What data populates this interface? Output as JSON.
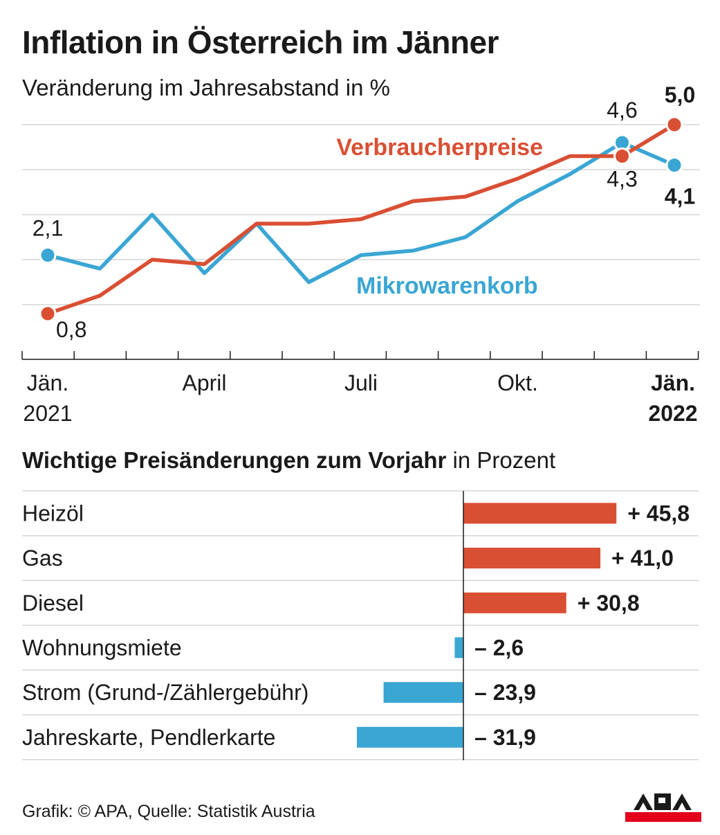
{
  "title": "Inflation in Österreich im Jänner",
  "subtitle": "Veränderung im Jahresabstand in %",
  "chart_data": [
    {
      "type": "line",
      "x": [
        "2021-01",
        "2021-02",
        "2021-03",
        "2021-04",
        "2021-05",
        "2021-06",
        "2021-07",
        "2021-08",
        "2021-09",
        "2021-10",
        "2021-11",
        "2021-12",
        "2022-01"
      ],
      "tick_labels": [
        {
          "x": "2021-01",
          "lines": [
            "Jän.",
            "2021"
          ],
          "bold": false
        },
        {
          "x": "2021-04",
          "lines": [
            "April"
          ],
          "bold": false
        },
        {
          "x": "2021-07",
          "lines": [
            "Juli"
          ],
          "bold": false
        },
        {
          "x": "2021-10",
          "lines": [
            "Okt."
          ],
          "bold": false
        },
        {
          "x": "2022-01",
          "lines": [
            "Jän.",
            "2022"
          ],
          "bold": true
        }
      ],
      "ylim": [
        0,
        5.6
      ],
      "gridlines": [
        1,
        2,
        3,
        4,
        5
      ],
      "grid": true,
      "series": [
        {
          "name": "Verbraucherpreise",
          "color": "#d94f33",
          "values": [
            0.8,
            1.2,
            2.0,
            1.9,
            2.8,
            2.8,
            2.9,
            3.3,
            3.4,
            3.8,
            4.3,
            4.3,
            5.0
          ],
          "label_position": "top-right",
          "point_labels": [
            {
              "index": 0,
              "text": "0,8",
              "bold": false
            },
            {
              "index": 11,
              "text": "4,3",
              "bold": false
            },
            {
              "index": 12,
              "text": "5,0",
              "bold": true
            }
          ]
        },
        {
          "name": "Mikrowarenkorb",
          "color": "#3aa6d4",
          "values": [
            2.1,
            1.8,
            3.0,
            1.7,
            2.8,
            1.5,
            2.1,
            2.2,
            2.5,
            3.3,
            3.9,
            4.6,
            4.1
          ],
          "label_position": "bottom-right",
          "point_labels": [
            {
              "index": 0,
              "text": "2,1",
              "bold": false
            },
            {
              "index": 11,
              "text": "4,6",
              "bold": false
            },
            {
              "index": 12,
              "text": "4,1",
              "bold": true
            }
          ]
        }
      ]
    },
    {
      "type": "bar",
      "title_bold": "Wichtige Preisänderungen zum Vorjahr",
      "title_rest": "in Prozent",
      "categories": [
        "Heizöl",
        "Gas",
        "Diesel",
        "Wohnungsmiete",
        "Strom (Grund-/Zählergebühr)",
        "Jahreskarte, Pendlerkarte"
      ],
      "values": [
        45.8,
        41.0,
        30.8,
        -2.6,
        -23.9,
        -31.9
      ],
      "value_labels": [
        "+ 45,8",
        "+ 41,0",
        "+ 30,8",
        "– 2,6",
        "– 23,9",
        "– 31,9"
      ],
      "positive_color": "#d94f33",
      "negative_color": "#3aa6d4"
    }
  ],
  "footer": "Grafik: © APA, Quelle: Statistik Austria",
  "logo": {
    "text": "APA",
    "color": "#e2001a"
  }
}
